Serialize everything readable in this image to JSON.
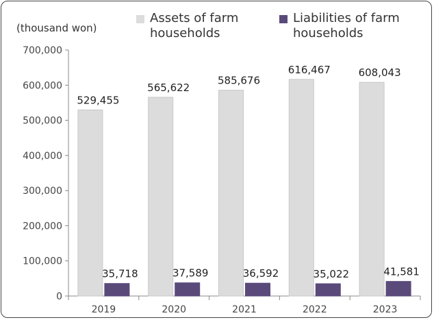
{
  "chart_data": {
    "type": "bar",
    "unit_label": "(thousand won)",
    "categories": [
      "2019",
      "2020",
      "2021",
      "2022",
      "2023"
    ],
    "series": [
      {
        "name": "Assets of farm households",
        "color": "#dcdcdc",
        "values": [
          529455,
          565622,
          585676,
          616467,
          608043
        ],
        "labels": [
          "529,455",
          "565,622",
          "585,676",
          "616,467",
          "608,043"
        ]
      },
      {
        "name": "Liabilities of farm households",
        "color": "#5a4a7a",
        "values": [
          35718,
          37589,
          36592,
          35022,
          41581
        ],
        "labels": [
          "35,718",
          "37,589",
          "36,592",
          "35,022",
          "41,581"
        ]
      }
    ],
    "ylim": [
      0,
      700000
    ],
    "yticks": [
      0,
      100000,
      200000,
      300000,
      400000,
      500000,
      600000,
      700000
    ],
    "ytick_labels": [
      "0",
      "100,000",
      "200,000",
      "300,000",
      "400,000",
      "500,000",
      "600,000",
      "700,000"
    ],
    "legend_position": "top",
    "grid": false
  }
}
